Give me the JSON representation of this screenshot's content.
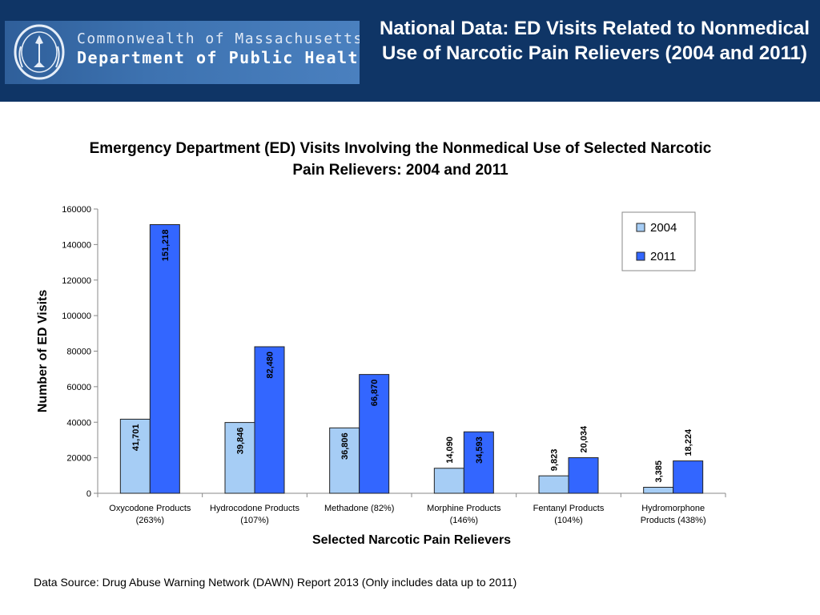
{
  "header": {
    "logo_line1": "Commonwealth of Massachusetts",
    "logo_line2": "Department of Public Health",
    "title": "National Data: ED Visits Related to Nonmedical Use of Narcotic Pain Relievers (2004 and 2011)"
  },
  "colors": {
    "header_bg": "#0f3566",
    "series_2004": "#a6cdf5",
    "series_2011": "#3366ff"
  },
  "chart_data": {
    "type": "bar",
    "title": "Emergency Department (ED) Visits Involving the Nonmedical Use of Selected Narcotic Pain Relievers: 2004 and 2011",
    "xlabel": "Selected Narcotic Pain Relievers",
    "ylabel": "Number of ED Visits",
    "ylim": [
      0,
      160000
    ],
    "yticks": [
      "0",
      "20000",
      "40000",
      "60000",
      "80000",
      "100000",
      "120000",
      "140000",
      "160000"
    ],
    "grid": false,
    "legend_position": "top-right",
    "categories": [
      [
        "Oxycodone Products",
        "(263%)"
      ],
      [
        "Hydrocodone Products",
        "(107%)"
      ],
      [
        "Methadone (82%)"
      ],
      [
        "Morphine Products",
        "(146%)"
      ],
      [
        "Fentanyl Products",
        "(104%)"
      ],
      [
        "Hydromorphone",
        "Products (438%)"
      ]
    ],
    "series": [
      {
        "name": "2004",
        "values": [
          41701,
          39846,
          36806,
          14090,
          9823,
          3385
        ],
        "labels": [
          "41,701",
          "39,846",
          "36,806",
          "14,090",
          "9,823",
          "3,385"
        ]
      },
      {
        "name": "2011",
        "values": [
          151218,
          82480,
          66870,
          34593,
          20034,
          18224
        ],
        "labels": [
          "151,218",
          "82,480",
          "66,870",
          "34,593",
          "20,034",
          "18,224"
        ]
      }
    ]
  },
  "footer": {
    "source": "Data Source: Drug Abuse Warning Network (DAWN) Report 2013 (Only includes data up to 2011)"
  }
}
